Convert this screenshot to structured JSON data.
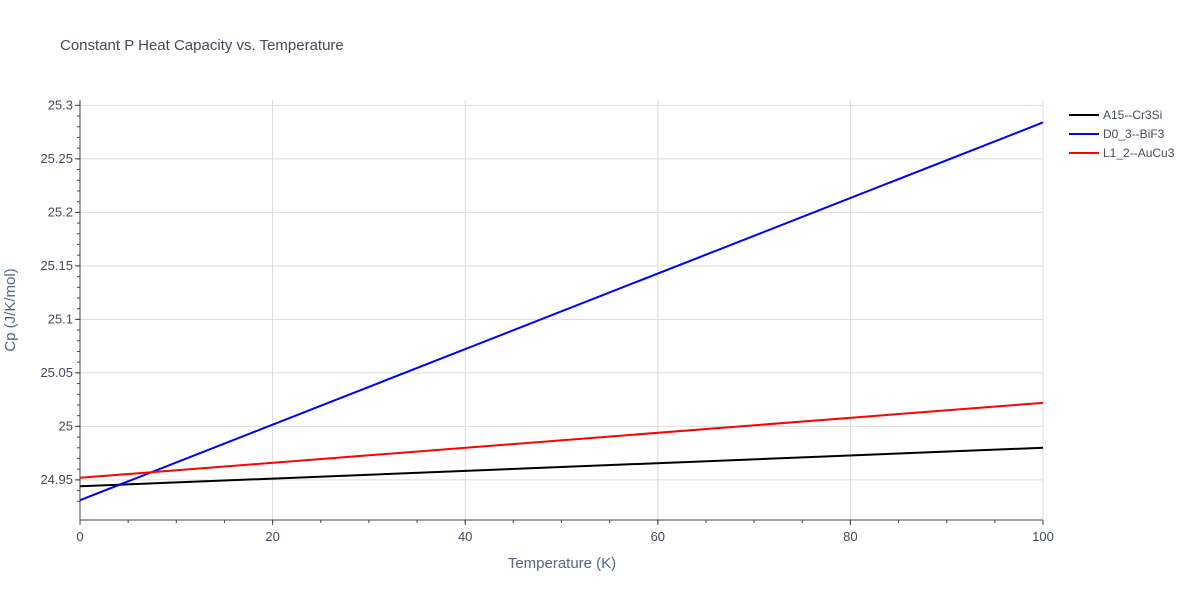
{
  "chart_data": {
    "type": "line",
    "title": "Constant P Heat Capacity vs. Temperature",
    "xlabel": "Temperature (K)",
    "ylabel": "Cp (J/K/mol)",
    "xlim": [
      0,
      100
    ],
    "ylim": [
      24.9125,
      25.305
    ],
    "x_ticks": [
      0,
      20,
      40,
      60,
      80,
      100
    ],
    "x_tick_labels": [
      "0",
      "20",
      "40",
      "60",
      "80",
      "100"
    ],
    "y_ticks": [
      24.95,
      25,
      25.05,
      25.1,
      25.15,
      25.2,
      25.25,
      25.3
    ],
    "y_tick_labels": [
      "24.95",
      "25",
      "25.05",
      "25.1",
      "25.15",
      "25.2",
      "25.25",
      "25.3"
    ],
    "grid": true,
    "legend_position": "top-right",
    "series": [
      {
        "name": "A15--Cr3Si",
        "color": "#000000",
        "x": [
          0,
          100
        ],
        "y": [
          24.944,
          24.98
        ]
      },
      {
        "name": "D0_3--BiF3",
        "color": "#0000ff",
        "x": [
          0,
          100
        ],
        "y": [
          24.931,
          25.284
        ]
      },
      {
        "name": "L1_2--AuCu3",
        "color": "#ff0000",
        "x": [
          0,
          100
        ],
        "y": [
          24.952,
          25.022
        ]
      }
    ]
  }
}
